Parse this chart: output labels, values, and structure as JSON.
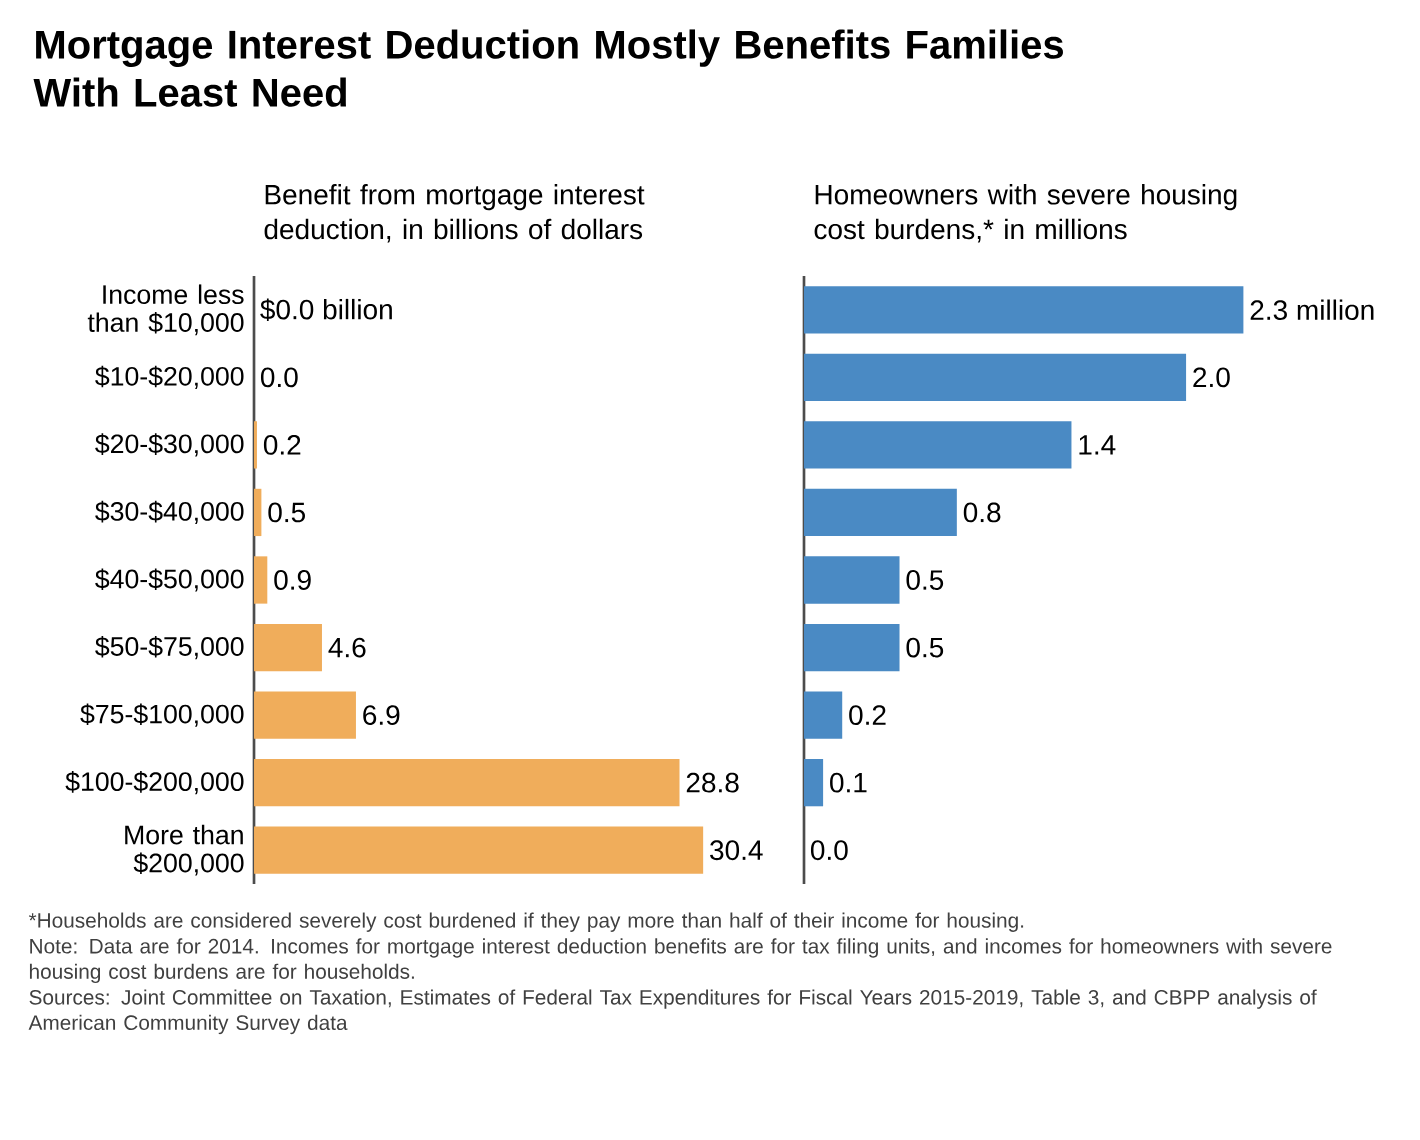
{
  "chart_data": [
    {
      "type": "bar",
      "orientation": "horizontal",
      "title": "Mortgage Interest Deduction Mostly Benefits Families With Least Need",
      "subtitle": "Benefit from mortgage interest deduction, in billions of dollars",
      "categories": [
        "Income less than $10,000",
        "$10-$20,000",
        "$20-$30,000",
        "$30-$40,000",
        "$40-$50,000",
        "$50-$75,000",
        "$75-$100,000",
        "$100-$200,000",
        "More than $200,000"
      ],
      "values": [
        0.0,
        0.0,
        0.2,
        0.5,
        0.9,
        4.6,
        6.9,
        28.8,
        30.4
      ],
      "value_labels": [
        "$0.0 billion",
        "0.0",
        "0.2",
        "0.5",
        "0.9",
        "4.6",
        "6.9",
        "28.8",
        "30.4"
      ],
      "color": "#f0ad5b",
      "annotations": [
        "*Households are considered severely cost burdened if they pay more than half of their income for housing.",
        "Note: Data are for 2014.  Incomes for mortgage interest deduction benefits are for tax filing units, and incomes for homeowners with severe housing cost burdens are for households.",
        "Sources:  Joint Committee on Taxation, Estimates of Federal Tax Expenditures for Fiscal Years 2015-2019, Table 3, and CBPP analysis of American Community Survey data"
      ]
    },
    {
      "type": "bar",
      "orientation": "horizontal",
      "subtitle": "Homeowners with severe housing cost burdens,* in millions",
      "categories": [
        null,
        null,
        null,
        null,
        null,
        null,
        null,
        null,
        null
      ],
      "values": [
        2.3,
        2.0,
        1.4,
        0.8,
        0.5,
        0.5,
        0.2,
        0.1,
        0.0
      ],
      "value_labels": [
        "2.3 million",
        "2.0",
        "1.4",
        "0.8",
        "0.5",
        "0.5",
        "0.2",
        "0.1",
        "0.0"
      ],
      "color": "#4a8ac4"
    }
  ]
}
